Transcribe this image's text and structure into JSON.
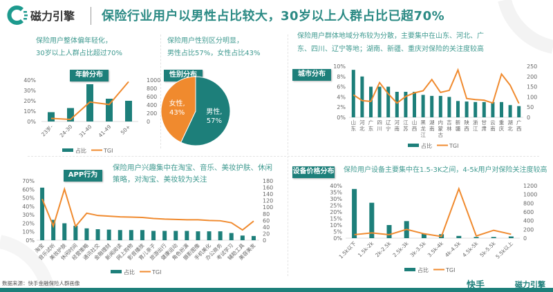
{
  "header": {
    "brand": "磁力引擎",
    "title": "保险行业用户以男性占比较大，30岁以上人群占比已超70%"
  },
  "age_panel": {
    "note1": "保险用户整体偏年轻化，",
    "note2": "30岁以上人群占比超过70%",
    "tag": "年龄分布"
  },
  "gender_panel": {
    "note1": "保险用户性别区分明显，",
    "note2": "男性占比57%，女性占比43%",
    "tag": "性别分布"
  },
  "city_panel": {
    "note1": "保险用户群体地域分布较为分散，主要集中在山东、河北、广",
    "note2": "东、四川、辽宁等地；湖南、新疆、重庆对保险的关注度较高",
    "tag": "城市分布"
  },
  "app_panel": {
    "note1": "保险用户兴趣集中在淘宝、音乐、美妆护肤、休闲",
    "note2": "策略，对淘宝、美妆较为关注",
    "tag": "APP行为"
  },
  "device_panel": {
    "note1": "保险用户设备主要集中在1.5-3K之间，4-5k用户对保险关注度较高",
    "tag": "设备价格分布"
  },
  "footer": {
    "source": "数据来源：快手金融保险人群画像",
    "logo1": "快手",
    "logo2": "磁力引擎"
  },
  "colors": {
    "teal": "#1d7f7a",
    "orange": "#f08a2e",
    "text_teal": "#3f9a90"
  },
  "chart_data": [
    {
      "id": "age",
      "type": "bar+line",
      "categories": [
        "23岁-",
        "24-30",
        "31-40",
        "41-49",
        "50+"
      ],
      "series": [
        {
          "name": "占比",
          "values": [
            9,
            13,
            36,
            22,
            20
          ],
          "axis": "left"
        },
        {
          "name": "TGI",
          "values": [
            75,
            50,
            470,
            410,
            960
          ],
          "axis": "right"
        }
      ],
      "ylim": [
        0,
        40
      ],
      "y2lim": [
        0,
        1000
      ],
      "yticks": [
        "0%",
        "10%",
        "20%",
        "30%",
        "40%"
      ],
      "y2ticks": [
        "0",
        "200",
        "400",
        "600",
        "800",
        "1000"
      ],
      "legend": "bottom"
    },
    {
      "id": "gender",
      "type": "pie",
      "categories": [
        "男性",
        "女性"
      ],
      "values": [
        57,
        43
      ],
      "labels": [
        "57%",
        "43%"
      ]
    },
    {
      "id": "city",
      "type": "bar+line",
      "categories": [
        "山东",
        "河北",
        "广东",
        "四川",
        "辽宁",
        "河南",
        "江苏",
        "山西",
        "黑龙江",
        "湖南",
        "内蒙古",
        "吉林",
        "新疆",
        "陕西",
        "浙江",
        "甘肃",
        "云南",
        "重庆",
        "湖北",
        "广西"
      ],
      "series": [
        {
          "name": "占比",
          "values": [
            9.3,
            8.0,
            6.0,
            6.0,
            6.0,
            5.0,
            5.0,
            5.0,
            4.4,
            4.2,
            4.2,
            4.0,
            3.2,
            3.1,
            3.0,
            3.0,
            3.0,
            3.0,
            2.4,
            2.2
          ],
          "axis": "left"
        },
        {
          "name": "TGI",
          "values": [
            110,
            82,
            78,
            170,
            115,
            70,
            102,
            120,
            130,
            185,
            122,
            132,
            232,
            92,
            87,
            84,
            70,
            212,
            157,
            68
          ],
          "axis": "right"
        }
      ],
      "ylim": [
        0,
        10
      ],
      "y2lim": [
        0,
        250
      ],
      "yticks": [
        "0%",
        "2%",
        "4%",
        "6%",
        "8%",
        "10%"
      ],
      "y2ticks": [
        "0",
        "50",
        "100",
        "150",
        "200",
        "250"
      ],
      "legend": "bottom"
    },
    {
      "id": "app",
      "type": "bar+line",
      "categories": [
        "淘宝",
        "音乐试听",
        "美妆护肤",
        "休闲时间",
        "经营策略",
        "通讯社交",
        "金融理财",
        "新闻阅读",
        "网上购物",
        "影音播放",
        "育儿亲子",
        "旅游出行",
        "健康运动",
        "角色扮演",
        "摄影图像",
        "手机美化",
        "办公商务",
        "考试学习",
        "辅助工具",
        "美容美发"
      ],
      "series": [
        {
          "name": "占比",
          "values": [
            62,
            24,
            20,
            17,
            14,
            13,
            12.5,
            12,
            12,
            12,
            11,
            11,
            11,
            11,
            10.5,
            10.5,
            10.5,
            8.5,
            5.5,
            5
          ],
          "axis": "left"
        },
        {
          "name": "TGI",
          "values": [
            125,
            43,
            155,
            42,
            82,
            75,
            73,
            71,
            70,
            69,
            66,
            64,
            63,
            62,
            62,
            60,
            59,
            53,
            31,
            58
          ],
          "axis": "right"
        }
      ],
      "ylim": [
        0,
        70
      ],
      "y2lim": [
        0,
        180
      ],
      "yticks": [
        "0%",
        "10%",
        "20%",
        "30%",
        "40%",
        "50%",
        "60%",
        "70%"
      ],
      "y2ticks": [
        "0",
        "20",
        "40",
        "60",
        "80",
        "100",
        "120",
        "140",
        "160",
        "180"
      ],
      "legend": "bottom"
    },
    {
      "id": "device",
      "type": "bar+line",
      "categories": [
        "1.5k以下",
        "1.5k-2k",
        "2k-2.5k",
        "2.5k-3k",
        "3k-3.5k",
        "3.5k-4k",
        "4k-4.5k",
        "4.5k-5k",
        "5k-5.5k",
        "5.5k以上"
      ],
      "series": [
        {
          "name": "占比",
          "values": [
            37.5,
            27,
            10,
            13,
            3.5,
            3,
            1.7,
            0.9,
            0.9,
            1.3
          ],
          "axis": "left"
        },
        {
          "name": "TGI",
          "values": [
            80,
            120,
            80,
            200,
            100,
            40,
            1130,
            50,
            180,
            90
          ],
          "axis": "right"
        }
      ],
      "ylim": [
        0,
        40
      ],
      "y2lim": [
        0,
        1200
      ],
      "yticks": [
        "0%",
        "5%",
        "10%",
        "15%",
        "20%",
        "25%",
        "30%",
        "35%",
        "40%"
      ],
      "y2ticks": [
        "0",
        "200",
        "400",
        "600",
        "800",
        "1000",
        "1200"
      ],
      "legend": "bottom"
    }
  ]
}
